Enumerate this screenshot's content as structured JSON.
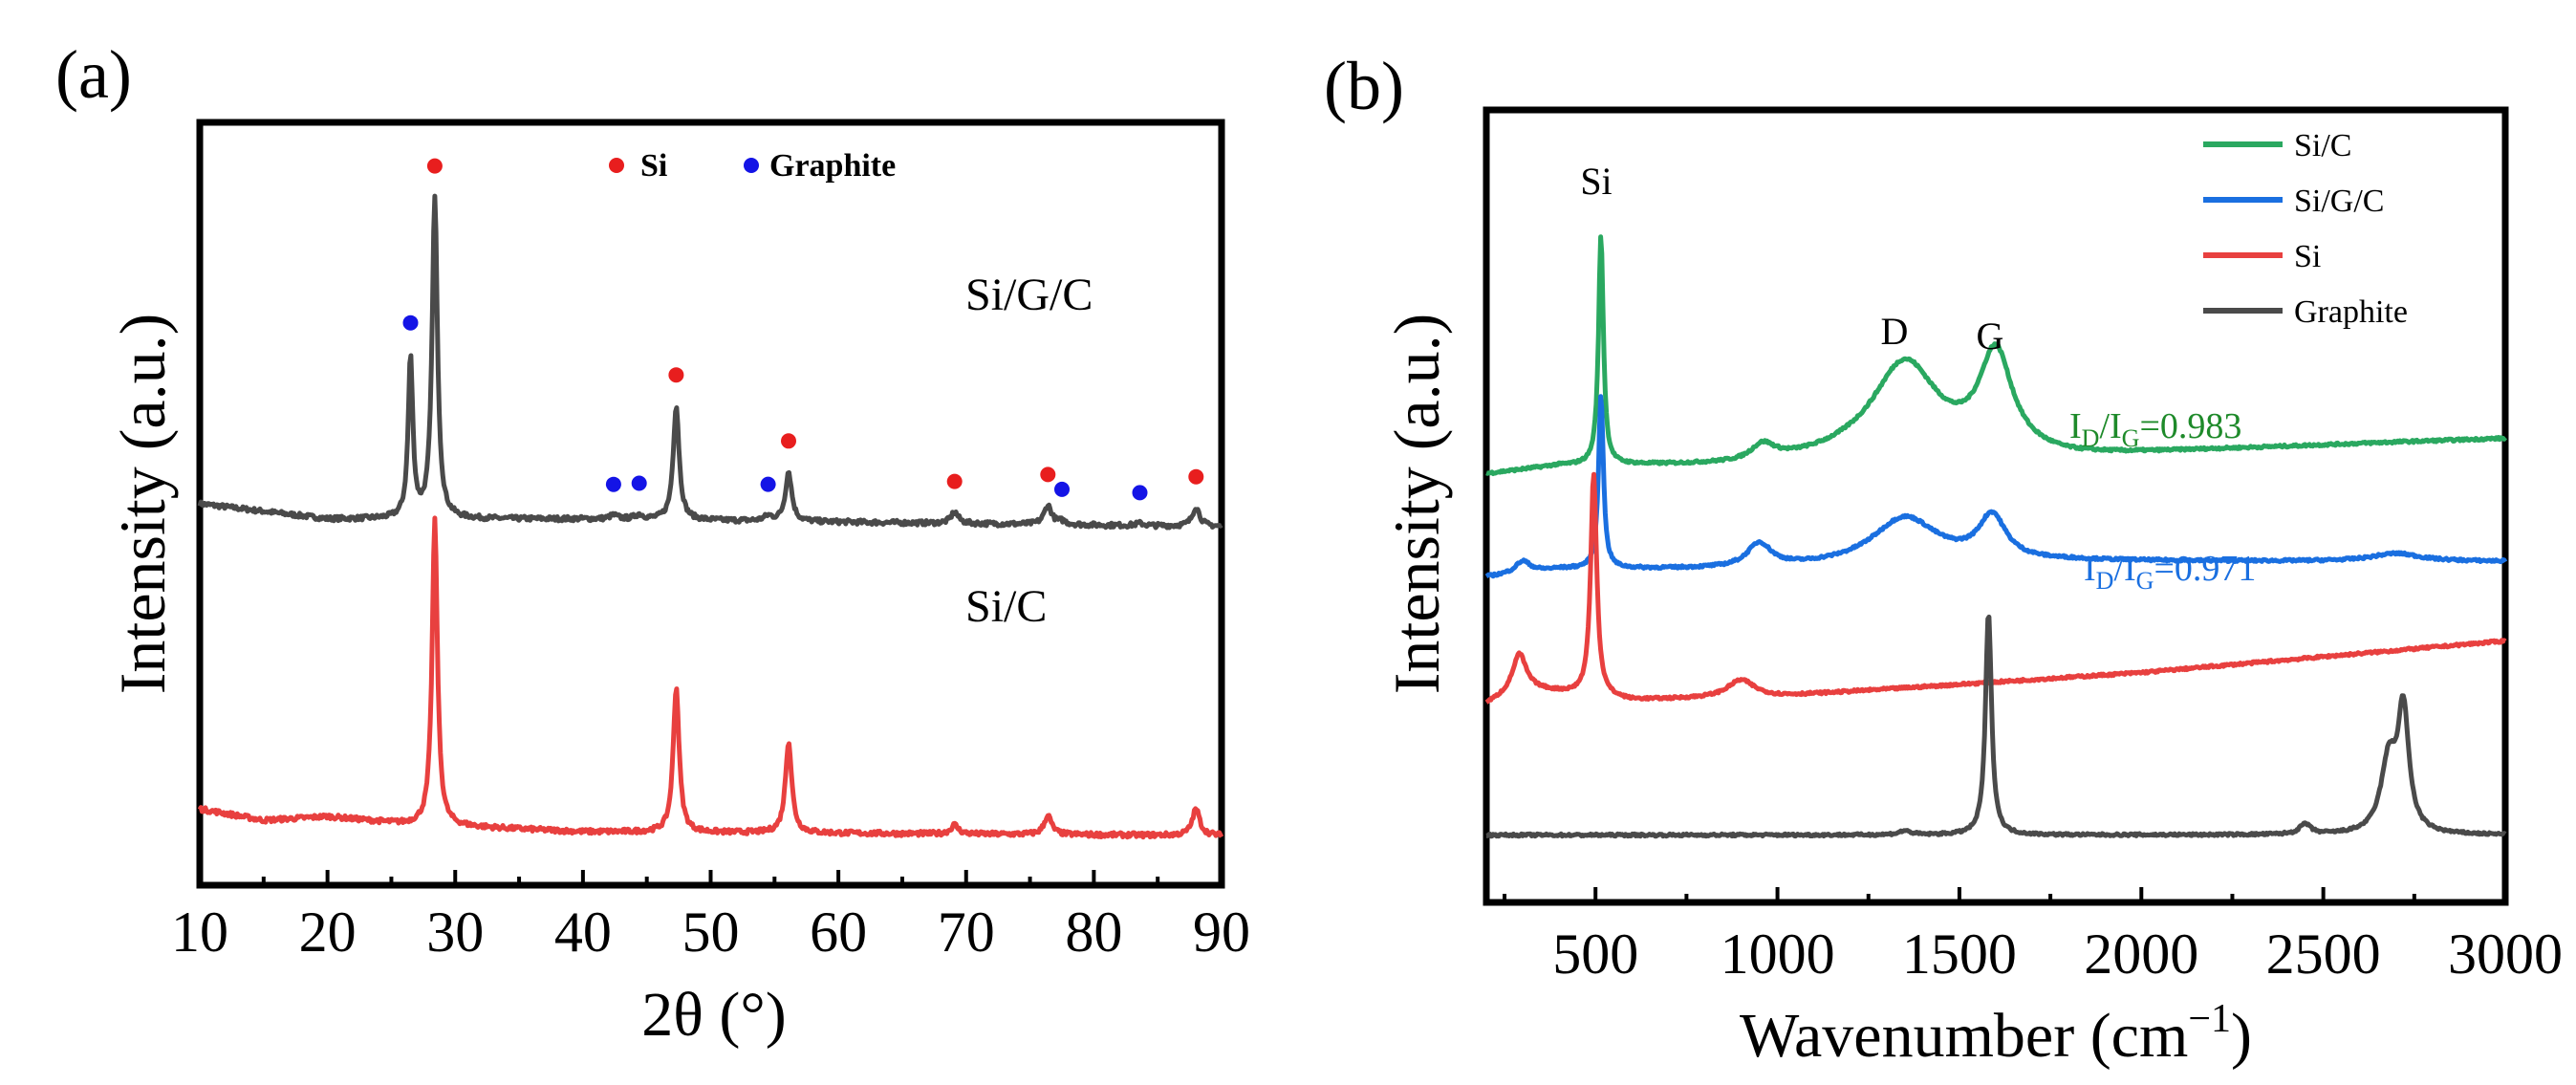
{
  "figure": {
    "panels": [
      {
        "label": "(a)",
        "xlabel": "2θ (°)",
        "ylabel": "Intensity (a.u.)",
        "xticks": [
          "10",
          "20",
          "30",
          "40",
          "50",
          "60",
          "70",
          "80",
          "90"
        ],
        "legend": {
          "entries": [
            {
              "label": "Si",
              "color": "#e81e1e"
            },
            {
              "label": "Graphite",
              "color": "#1414e6"
            }
          ]
        },
        "curve_labels": [
          "Si/G/C",
          "Si/C"
        ]
      },
      {
        "label": "(b)",
        "xlabel_main": "Wavenumber (cm",
        "xlabel_sup": "−1",
        "xlabel_close": ")",
        "ylabel": "Intensity (a.u.)",
        "xticks": [
          "500",
          "1000",
          "1500",
          "2000",
          "2500",
          "3000"
        ],
        "legend": {
          "entries": [
            {
              "label": "Si/C",
              "color": "#2aa860"
            },
            {
              "label": "Si/G/C",
              "color": "#1a6fe0"
            },
            {
              "label": "Si",
              "color": "#e8403f"
            },
            {
              "label": "Graphite",
              "color": "#4a4a4a"
            }
          ]
        },
        "peak_labels": [
          "Si",
          "D",
          "G"
        ],
        "ratios": [
          {
            "i": "I",
            "d": "D",
            "slash": "/",
            "g": "G",
            "value": "=0.983",
            "color": "#1e8a2a"
          },
          {
            "i": "I",
            "d": "D",
            "slash": "/",
            "g": "G",
            "value": "=0.971",
            "color": "#1a6fe0"
          }
        ]
      }
    ]
  },
  "chart_data": [
    {
      "type": "line",
      "title": "(a)",
      "xlabel": "2θ (°)",
      "ylabel": "Intensity (a.u.)",
      "xlim": [
        10,
        90
      ],
      "ylim": [
        0,
        1
      ],
      "grid": false,
      "series": [
        {
          "name": "Si/G/C",
          "color": "#4a4a4a",
          "baseline": 0.48,
          "baseline_points": [
            [
              10,
              0.5
            ],
            [
              20,
              0.48
            ],
            [
              40,
              0.48
            ],
            [
              90,
              0.47
            ]
          ],
          "peaks": [
            {
              "x": 26.5,
              "h": 0.21,
              "w": 0.22
            },
            {
              "x": 28.4,
              "h": 0.42,
              "w": 0.25
            },
            {
              "x": 42.4,
              "h": 0.005,
              "w": 0.4
            },
            {
              "x": 44.4,
              "h": 0.006,
              "w": 0.4
            },
            {
              "x": 47.3,
              "h": 0.15,
              "w": 0.28
            },
            {
              "x": 54.5,
              "h": 0.006,
              "w": 0.4
            },
            {
              "x": 56.1,
              "h": 0.065,
              "w": 0.3
            },
            {
              "x": 69.1,
              "h": 0.015,
              "w": 0.35
            },
            {
              "x": 76.4,
              "h": 0.025,
              "w": 0.35
            },
            {
              "x": 77.5,
              "h": 0.004,
              "w": 0.4
            },
            {
              "x": 83.6,
              "h": 0.003,
              "w": 0.4
            },
            {
              "x": 88.0,
              "h": 0.025,
              "w": 0.35
            }
          ]
        },
        {
          "name": "Si/C",
          "color": "#e8403f",
          "baseline": 0.07,
          "baseline_points": [
            [
              10,
              0.1
            ],
            [
              15,
              0.085
            ],
            [
              20,
              0.09
            ],
            [
              26,
              0.08
            ],
            [
              40,
              0.07
            ],
            [
              90,
              0.065
            ]
          ],
          "peaks": [
            {
              "x": 28.4,
              "h": 0.4,
              "w": 0.25
            },
            {
              "x": 47.3,
              "h": 0.19,
              "w": 0.28
            },
            {
              "x": 56.1,
              "h": 0.12,
              "w": 0.3
            },
            {
              "x": 69.1,
              "h": 0.012,
              "w": 0.35
            },
            {
              "x": 76.4,
              "h": 0.025,
              "w": 0.35
            },
            {
              "x": 88.0,
              "h": 0.035,
              "w": 0.35
            }
          ]
        }
      ],
      "markers": [
        {
          "label": "Si",
          "color": "#e81e1e",
          "x": [
            28.4,
            47.3,
            56.1,
            69.1,
            76.4,
            88.0
          ]
        },
        {
          "label": "Graphite",
          "color": "#1414e6",
          "x": [
            26.5,
            42.4,
            44.4,
            54.5,
            77.5,
            83.6
          ]
        }
      ]
    },
    {
      "type": "line",
      "title": "(b)",
      "xlabel": "Wavenumber (cm−1)",
      "ylabel": "Intensity (a.u.)",
      "xlim": [
        200,
        3000
      ],
      "ylim": [
        0,
        1
      ],
      "grid": false,
      "series": [
        {
          "name": "Si/C",
          "color": "#2aa860",
          "baseline_points": [
            [
              200,
              0.54
            ],
            [
              400,
              0.55
            ],
            [
              900,
              0.55
            ],
            [
              1200,
              0.56
            ],
            [
              1800,
              0.56
            ],
            [
              2200,
              0.57
            ],
            [
              2700,
              0.58
            ],
            [
              3000,
              0.585
            ]
          ],
          "peaks": [
            {
              "x": 515,
              "h": 0.29,
              "w": 8
            },
            {
              "x": 960,
              "h": 0.02,
              "w": 40
            },
            {
              "x": 1350,
              "h": 0.12,
              "w": 110
            },
            {
              "x": 1600,
              "h": 0.125,
              "w": 55
            }
          ]
        },
        {
          "name": "Si/G/C",
          "color": "#1a6fe0",
          "baseline_points": [
            [
              200,
              0.41
            ],
            [
              400,
              0.42
            ],
            [
              900,
              0.42
            ],
            [
              1800,
              0.43
            ],
            [
              2600,
              0.43
            ],
            [
              3000,
              0.43
            ]
          ],
          "peaks": [
            {
              "x": 300,
              "h": 0.015,
              "w": 25
            },
            {
              "x": 515,
              "h": 0.22,
              "w": 8
            },
            {
              "x": 950,
              "h": 0.03,
              "w": 40
            },
            {
              "x": 1350,
              "h": 0.06,
              "w": 110
            },
            {
              "x": 1590,
              "h": 0.055,
              "w": 45
            },
            {
              "x": 2700,
              "h": 0.01,
              "w": 80
            }
          ]
        },
        {
          "name": "Si",
          "color": "#e8403f",
          "baseline_points": [
            [
              200,
              0.25
            ],
            [
              300,
              0.27
            ],
            [
              600,
              0.255
            ],
            [
              1000,
              0.26
            ],
            [
              1500,
              0.275
            ],
            [
              2000,
              0.29
            ],
            [
              2500,
              0.31
            ],
            [
              3000,
              0.33
            ]
          ],
          "peaks": [
            {
              "x": 290,
              "h": 0.045,
              "w": 22
            },
            {
              "x": 495,
              "h": 0.28,
              "w": 10
            },
            {
              "x": 900,
              "h": 0.022,
              "w": 45
            }
          ]
        },
        {
          "name": "Graphite",
          "color": "#4a4a4a",
          "baseline_points": [
            [
              200,
              0.085
            ],
            [
              3000,
              0.085
            ]
          ],
          "peaks": [
            {
              "x": 1350,
              "h": 0.005,
              "w": 20
            },
            {
              "x": 1580,
              "h": 0.28,
              "w": 10
            },
            {
              "x": 2450,
              "h": 0.013,
              "w": 18
            },
            {
              "x": 2680,
              "h": 0.09,
              "w": 26
            },
            {
              "x": 2720,
              "h": 0.15,
              "w": 18
            }
          ]
        }
      ],
      "annotations": [
        {
          "text": "Si",
          "x": 515
        },
        {
          "text": "D",
          "x": 1350
        },
        {
          "text": "G",
          "x": 1600
        },
        {
          "text": "ID/IG=0.983"
        },
        {
          "text": "ID/IG=0.971"
        }
      ]
    }
  ]
}
